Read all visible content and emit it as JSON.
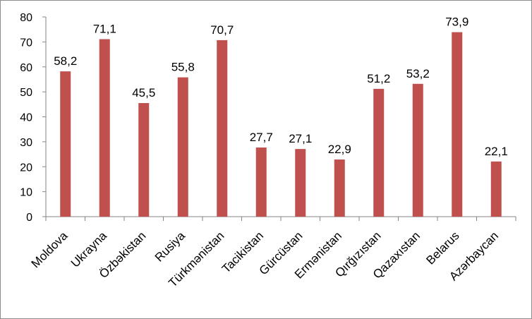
{
  "chart_data": {
    "type": "bar",
    "categories": [
      "Moldova",
      "Ukrayna",
      "Özbəkistan",
      "Rusiya",
      "Türkmənistan",
      "Tacikistan",
      "Gürcüstan",
      "Ermənistan",
      "Qırğızıstan",
      "Qazaxıstan",
      "Belarus",
      "Azərbaycan"
    ],
    "values": [
      58.2,
      71.1,
      45.5,
      55.8,
      70.7,
      27.7,
      27.1,
      22.9,
      51.2,
      53.2,
      73.9,
      22.1
    ],
    "value_labels": [
      "58,2",
      "71,1",
      "45,5",
      "55,8",
      "70,7",
      "27,7",
      "27,1",
      "22,9",
      "51,2",
      "53,2",
      "73,9",
      "22,1"
    ],
    "title": "",
    "xlabel": "",
    "ylabel": "",
    "ylim": [
      0,
      80
    ],
    "yticks": [
      "0",
      "10",
      "20",
      "30",
      "40",
      "50",
      "60",
      "70",
      "80"
    ],
    "grid": false,
    "legend": "none",
    "bar_color": "#c0504d",
    "axis_color": "#868686"
  }
}
